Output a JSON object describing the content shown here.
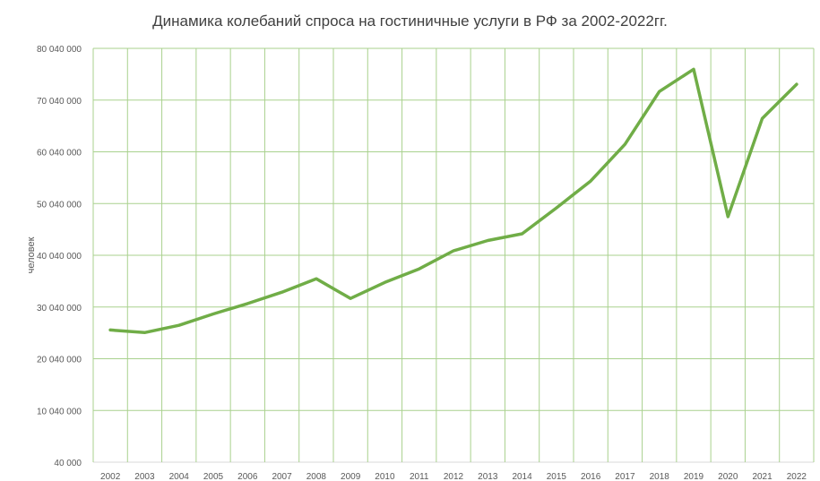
{
  "chart_data": {
    "type": "line",
    "title": "Динамика колебаний спроса на гостиничные услуги в РФ за 2002-2022гг.",
    "xlabel": "",
    "ylabel": "человек",
    "ylim": [
      40000,
      80040000
    ],
    "yticks": [
      40000,
      10040000,
      20040000,
      30040000,
      40040000,
      50040000,
      60040000,
      70040000,
      80040000
    ],
    "ytick_labels": [
      "40 000",
      "10 040 000",
      "20 040 000",
      "30 040 000",
      "40 040 000",
      "50 040 000",
      "60 040 000",
      "70 040 000",
      "80 040 000"
    ],
    "grid": true,
    "categories": [
      "2002",
      "2003",
      "2004",
      "2005",
      "2006",
      "2007",
      "2008",
      "2009",
      "2010",
      "2011",
      "2012",
      "2013",
      "2014",
      "2015",
      "2016",
      "2017",
      "2018",
      "2019",
      "2020",
      "2021",
      "2022"
    ],
    "series": [
      {
        "name": "человек",
        "color": "#70ad47",
        "values": [
          25600000,
          25100000,
          26500000,
          28700000,
          30700000,
          32900000,
          35500000,
          31700000,
          34800000,
          37400000,
          40900000,
          42900000,
          44200000,
          49200000,
          54400000,
          61500000,
          71700000,
          76000000,
          47500000,
          66500000,
          73100000
        ]
      }
    ],
    "grid_color": "#a9d18e"
  }
}
